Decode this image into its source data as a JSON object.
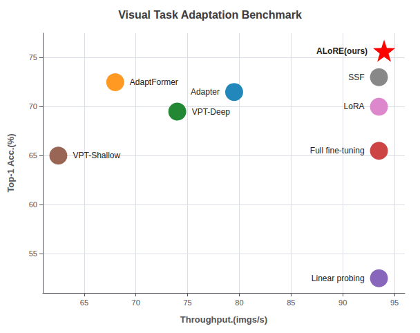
{
  "chart_data": {
    "type": "scatter",
    "title": "Visual Task Adaptation Benchmark",
    "xlabel": "Throughput.(imgs/s)",
    "ylabel": "Top-1 Acc.(%)",
    "xlim": [
      61,
      96
    ],
    "ylim": [
      51,
      77.5
    ],
    "xticks": [
      65,
      70,
      75,
      80,
      85,
      90,
      95
    ],
    "yticks": [
      55,
      60,
      65,
      70,
      75
    ],
    "grid": true,
    "data_labels": true,
    "series": [
      {
        "name": "ALoRE(ours)",
        "color": "#ff0000",
        "marker": "star",
        "x": [
          94.0
        ],
        "values": [
          75.7
        ]
      },
      {
        "name": "SSF",
        "color": "#888888",
        "marker": "circle",
        "x": [
          93.5
        ],
        "values": [
          73.0
        ]
      },
      {
        "name": "LoRA",
        "color": "#dd88cc",
        "marker": "circle",
        "x": [
          93.5
        ],
        "values": [
          70.0
        ]
      },
      {
        "name": "Full fine-tuning",
        "color": "#cc4444",
        "marker": "circle",
        "x": [
          93.5
        ],
        "values": [
          65.5
        ]
      },
      {
        "name": "AdaptFormer",
        "color": "#ff9922",
        "marker": "circle",
        "x": [
          68.0
        ],
        "values": [
          72.5
        ]
      },
      {
        "name": "Adapter",
        "color": "#2288bb",
        "marker": "circle",
        "x": [
          79.5
        ],
        "values": [
          71.5
        ]
      },
      {
        "name": "VPT-Deep",
        "color": "#228833",
        "marker": "circle",
        "x": [
          74.0
        ],
        "values": [
          69.5
        ]
      },
      {
        "name": "VPT-Shallow",
        "color": "#996655",
        "marker": "circle",
        "x": [
          62.5
        ],
        "values": [
          65.0
        ]
      },
      {
        "name": "Linear probing",
        "color": "#8866bb",
        "marker": "circle",
        "x": [
          93.5
        ],
        "values": [
          52.5
        ]
      }
    ]
  }
}
